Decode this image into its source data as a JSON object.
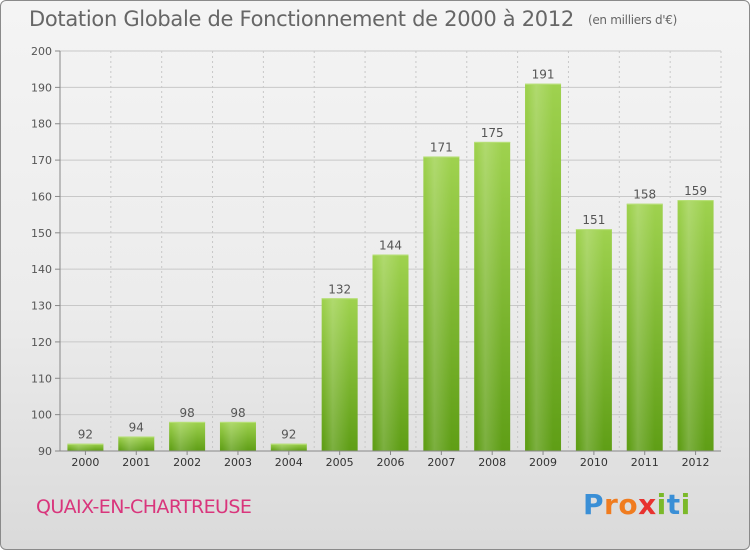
{
  "title": "Dotation Globale de Fonctionnement de 2000 à 2012",
  "unit_note": "(en milliers d'€)",
  "commune": "QUAIX-EN-CHARTREUSE",
  "logo": {
    "text": "Proxiti",
    "letters": [
      {
        "ch": "P",
        "color": "#3a8fd6"
      },
      {
        "ch": "r",
        "color": "#f07c1f"
      },
      {
        "ch": "o",
        "color": "#f07c1f"
      },
      {
        "ch": "x",
        "color": "#e8322f"
      },
      {
        "ch": "i",
        "color": "#7bb929"
      },
      {
        "ch": "t",
        "color": "#3a8fd6"
      },
      {
        "ch": "i",
        "color": "#7bb929"
      }
    ]
  },
  "colors": {
    "bar_top": "#9fd24f",
    "bar_bottom": "#5f9e16",
    "grid": "#c8c8c8",
    "axis": "#888888",
    "text": "#555555",
    "commune": "#d9357c"
  },
  "chart_data": {
    "type": "bar",
    "categories": [
      "2000",
      "2001",
      "2002",
      "2003",
      "2004",
      "2005",
      "2006",
      "2007",
      "2008",
      "2009",
      "2010",
      "2011",
      "2012"
    ],
    "values": [
      92,
      94,
      98,
      98,
      92,
      132,
      144,
      171,
      175,
      191,
      151,
      158,
      159
    ],
    "ylim": [
      90,
      200
    ],
    "yticks": [
      90,
      100,
      110,
      120,
      130,
      140,
      150,
      160,
      170,
      180,
      190,
      200
    ],
    "grid": true,
    "legend": "none"
  }
}
